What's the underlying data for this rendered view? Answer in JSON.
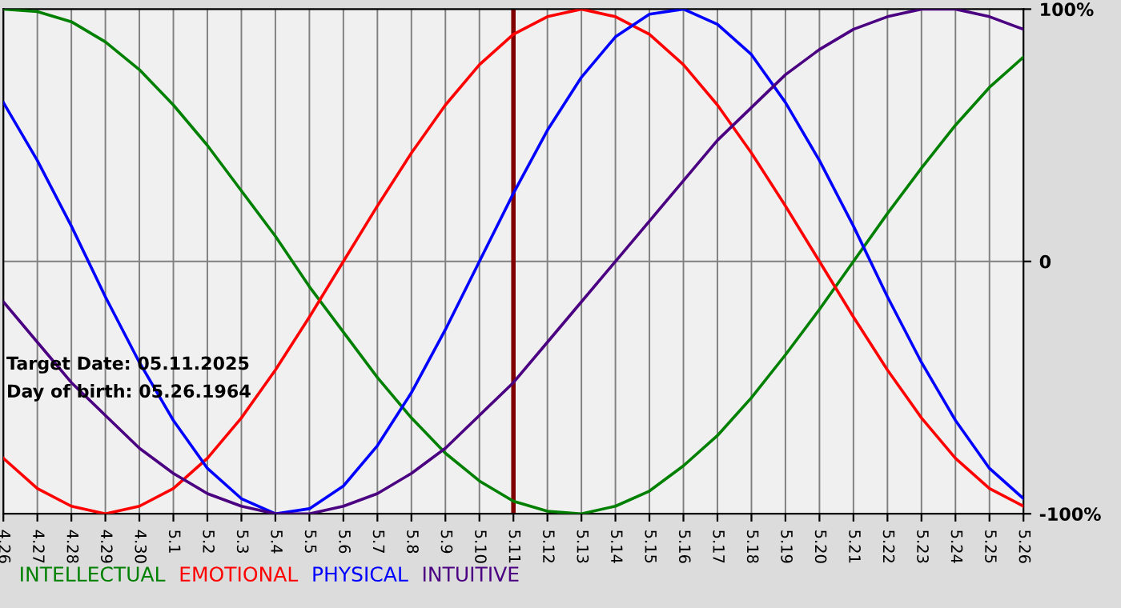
{
  "chart_data": {
    "type": "line",
    "categories": [
      "4.26",
      "4.27",
      "4.28",
      "4.29",
      "4.30",
      "5.1",
      "5.2",
      "5.3",
      "5.4",
      "5.5",
      "5.6",
      "5.7",
      "5.8",
      "5.9",
      "5.10",
      "5.11",
      "5.12",
      "5.13",
      "5.14",
      "5.15",
      "5.16",
      "5.17",
      "5.18",
      "5.19",
      "5.20",
      "5.21",
      "5.22",
      "5.23",
      "5.24",
      "5.25",
      "5.26"
    ],
    "series": [
      {
        "name": "INTELLECTUAL",
        "color": "#008000",
        "values": [
          100,
          99,
          95,
          87,
          76,
          62,
          46,
          28,
          10,
          -10,
          -28,
          -46,
          -62,
          -76,
          -87,
          -95,
          -99,
          -100,
          -97,
          -91,
          -81,
          -69,
          -54,
          -37,
          -19,
          0,
          19,
          37,
          54,
          69,
          81
        ]
      },
      {
        "name": "EMOTIONAL",
        "color": "#ff0000",
        "values": [
          -78,
          -90,
          -97,
          -100,
          -97,
          -90,
          -78,
          -62,
          -43,
          -22,
          0,
          22,
          43,
          62,
          78,
          90,
          97,
          100,
          97,
          90,
          78,
          62,
          43,
          22,
          0,
          -22,
          -43,
          -62,
          -78,
          -90,
          -97
        ]
      },
      {
        "name": "PHYSICAL",
        "color": "#0000ff",
        "values": [
          63,
          40,
          14,
          -14,
          -40,
          -63,
          -82,
          -94,
          -100,
          -98,
          -89,
          -73,
          -52,
          -27,
          0,
          27,
          52,
          73,
          89,
          98,
          100,
          94,
          82,
          63,
          40,
          14,
          -14,
          -40,
          -63,
          -82,
          -94
        ]
      },
      {
        "name": "INTUITIVE",
        "color": "#4b0082",
        "values": [
          -16,
          -32,
          -48,
          -61,
          -74,
          -84,
          -92,
          -97,
          -100,
          -100,
          -97,
          -92,
          -84,
          -74,
          -61,
          -48,
          -32,
          -16,
          0,
          16,
          32,
          48,
          61,
          74,
          84,
          92,
          97,
          100,
          100,
          97,
          92
        ]
      }
    ],
    "ylim": [
      -100,
      100
    ],
    "yticks": [
      {
        "value": 100,
        "label": "100%"
      },
      0,
      {
        "value": -100,
        "label": "-100%"
      }
    ],
    "grid": true,
    "legend": "bottom left",
    "marker": "none",
    "line_style": "solid",
    "ref_lines": [
      {
        "axis": "x",
        "value": "5.11",
        "color": "#800000"
      }
    ],
    "annotations": [
      "Target Date: 05.11.2025",
      "Day of birth: 05.26.1964"
    ]
  }
}
